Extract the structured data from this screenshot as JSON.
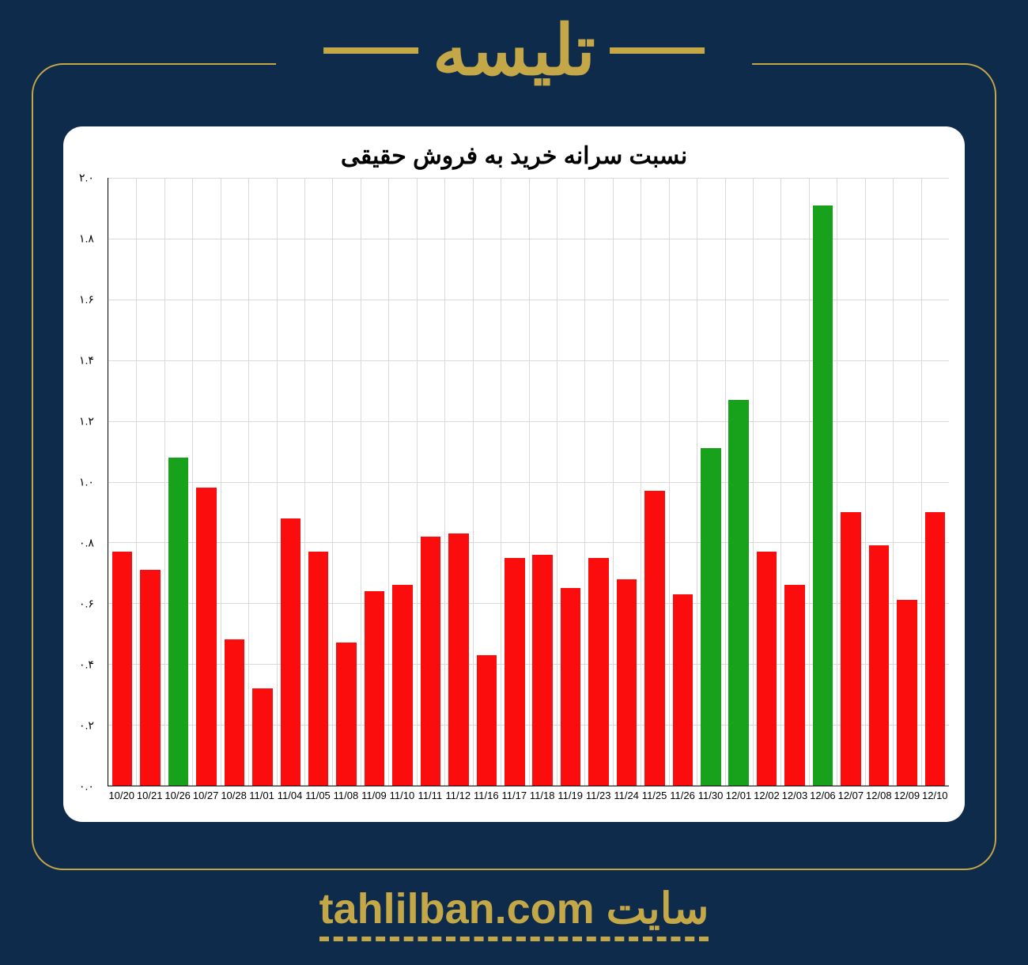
{
  "page": {
    "background_color": "#0f2b4c",
    "frame_border_color": "#c4a747",
    "frame_border_radius": 40
  },
  "header": {
    "title": "تلیسه",
    "title_color": "#c4a747",
    "title_fontsize": 88,
    "line_color": "#c4a747"
  },
  "chart": {
    "type": "bar",
    "title": "نسبت سرانه خرید به فروش حقیقی",
    "title_fontsize": 30,
    "title_color": "#000000",
    "background_color": "#ffffff",
    "card_border_radius": 24,
    "ylim": [
      0.0,
      2.0
    ],
    "ytick_step": 0.2,
    "yticks_labels": [
      "۰.۰",
      "۰.۲",
      "۰.۴",
      "۰.۶",
      "۰.۸",
      "۱.۰",
      "۱.۲",
      "۱.۴",
      "۱.۶",
      "۱.۸",
      "۲.۰"
    ],
    "axis_fontsize": 14,
    "xaxis_fontsize": 13,
    "grid_color": "#d9d9d9",
    "axis_line_color": "#000000",
    "bar_width_ratio": 0.72,
    "categories": [
      "10/20",
      "10/21",
      "10/26",
      "10/27",
      "10/28",
      "11/01",
      "11/04",
      "11/05",
      "11/08",
      "11/09",
      "11/10",
      "11/11",
      "11/12",
      "11/16",
      "11/17",
      "11/18",
      "11/19",
      "11/23",
      "11/24",
      "11/25",
      "11/26",
      "11/30",
      "12/01",
      "12/02",
      "12/03",
      "12/06",
      "12/07",
      "12/08",
      "12/09",
      "12/10"
    ],
    "values": [
      0.77,
      0.71,
      1.08,
      0.98,
      0.48,
      0.32,
      0.88,
      0.77,
      0.47,
      0.64,
      0.66,
      0.82,
      0.83,
      0.43,
      0.75,
      0.76,
      0.65,
      0.75,
      0.68,
      0.97,
      0.63,
      1.11,
      1.27,
      0.77,
      0.66,
      1.91,
      0.9,
      0.79,
      0.61,
      0.9
    ],
    "bar_colors": [
      "#fb0d0d",
      "#fb0d0d",
      "#18a11a",
      "#fb0d0d",
      "#fb0d0d",
      "#fb0d0d",
      "#fb0d0d",
      "#fb0d0d",
      "#fb0d0d",
      "#fb0d0d",
      "#fb0d0d",
      "#fb0d0d",
      "#fb0d0d",
      "#fb0d0d",
      "#fb0d0d",
      "#fb0d0d",
      "#fb0d0d",
      "#fb0d0d",
      "#fb0d0d",
      "#fb0d0d",
      "#fb0d0d",
      "#18a11a",
      "#18a11a",
      "#fb0d0d",
      "#fb0d0d",
      "#18a11a",
      "#fb0d0d",
      "#fb0d0d",
      "#fb0d0d",
      "#fb0d0d"
    ]
  },
  "footer": {
    "text": "سایت tahlilban.com",
    "color": "#c4a747",
    "fontsize": 54,
    "underline_style": "dashed",
    "underline_color": "#c4a747"
  }
}
